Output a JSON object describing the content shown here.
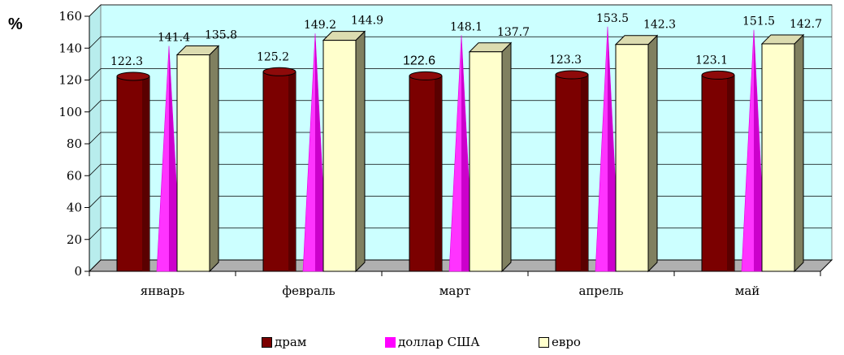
{
  "chart_data": {
    "type": "bar",
    "unit_label": "%",
    "categories": [
      "январь",
      "февраль",
      "март",
      "апрель",
      "май"
    ],
    "series": [
      {
        "name": "драм",
        "values": [
          122.3,
          125.2,
          122.6,
          123.3,
          123.1
        ],
        "color": "#7b0000"
      },
      {
        "name": "доллар США",
        "values": [
          141.4,
          149.2,
          148.1,
          153.5,
          151.5
        ],
        "color": "#ff00ff"
      },
      {
        "name": "евро",
        "values": [
          135.8,
          144.9,
          137.7,
          142.3,
          142.7
        ],
        "color": "#ffffcc"
      }
    ],
    "data_labels": [
      [
        "122.3",
        "125.2",
        "122.6",
        "123.3",
        "123.1"
      ],
      [
        "141.4",
        "149.2",
        "148.1",
        "153.5",
        "151.5"
      ],
      [
        "135.8",
        "144.9",
        "137.7",
        "142.3",
        "142.7"
      ]
    ],
    "ylim": [
      0,
      160
    ],
    "yticks": [
      0,
      20,
      40,
      60,
      80,
      100,
      120,
      140,
      160
    ],
    "grid": true,
    "legend_position": "bottom",
    "plot_background": "#ccffff"
  }
}
